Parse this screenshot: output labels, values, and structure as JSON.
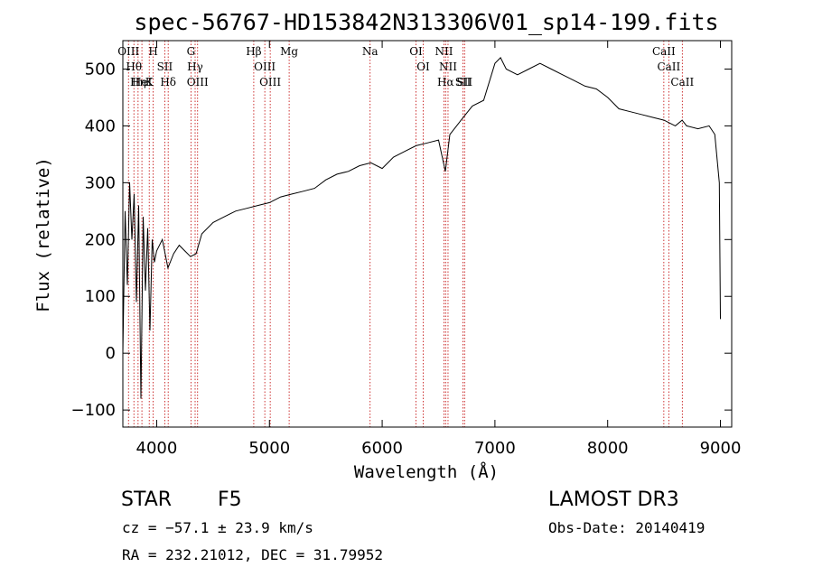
{
  "chart_data": {
    "type": "line",
    "title": "spec-56767-HD153842N313306V01_sp14-199.fits",
    "xlabel": "Wavelength (Å)",
    "ylabel": "Flux (relative)",
    "xlim": [
      3700,
      9100
    ],
    "ylim": [
      -130,
      550
    ],
    "xticks": [
      4000,
      5000,
      6000,
      7000,
      8000,
      9000
    ],
    "yticks": [
      -100,
      0,
      100,
      200,
      300,
      400,
      500
    ],
    "series": [
      {
        "name": "flux",
        "x": [
          3700,
          3720,
          3740,
          3760,
          3780,
          3800,
          3820,
          3840,
          3860,
          3880,
          3900,
          3920,
          3940,
          3960,
          3980,
          4000,
          4050,
          4100,
          4150,
          4200,
          4250,
          4300,
          4350,
          4400,
          4500,
          4600,
          4700,
          4800,
          4900,
          5000,
          5100,
          5200,
          5300,
          5400,
          5500,
          5600,
          5700,
          5800,
          5900,
          6000,
          6100,
          6200,
          6300,
          6400,
          6500,
          6560,
          6600,
          6700,
          6800,
          6900,
          7000,
          7050,
          7100,
          7200,
          7300,
          7400,
          7500,
          7600,
          7700,
          7800,
          7900,
          8000,
          8100,
          8200,
          8300,
          8400,
          8500,
          8550,
          8600,
          8660,
          8700,
          8800,
          8900,
          8950,
          8990,
          9000
        ],
        "y": [
          0,
          250,
          120,
          300,
          200,
          280,
          90,
          260,
          -80,
          240,
          110,
          220,
          40,
          200,
          160,
          180,
          200,
          150,
          175,
          190,
          180,
          170,
          175,
          210,
          230,
          240,
          250,
          255,
          260,
          265,
          275,
          280,
          285,
          290,
          305,
          315,
          320,
          330,
          335,
          325,
          345,
          355,
          365,
          370,
          375,
          320,
          385,
          410,
          435,
          445,
          510,
          520,
          500,
          490,
          500,
          510,
          500,
          490,
          480,
          470,
          465,
          450,
          430,
          425,
          420,
          415,
          410,
          405,
          400,
          410,
          400,
          395,
          400,
          385,
          300,
          60
        ]
      }
    ],
    "reference_lines": [
      {
        "x": 3750,
        "label": "OIII"
      },
      {
        "x": 3798,
        "label": "Hθ"
      },
      {
        "x": 3835,
        "label": "Hη"
      },
      {
        "x": 3869,
        "label": "HeI"
      },
      {
        "x": 3934,
        "label": "K"
      },
      {
        "x": 3969,
        "label": "H"
      },
      {
        "x": 4072,
        "label": "SII"
      },
      {
        "x": 4102,
        "label": "Hδ"
      },
      {
        "x": 4304,
        "label": "G"
      },
      {
        "x": 4341,
        "label": "Hγ"
      },
      {
        "x": 4363,
        "label": "OIII"
      },
      {
        "x": 4861,
        "label": "Hβ"
      },
      {
        "x": 4959,
        "label": "OIII"
      },
      {
        "x": 5007,
        "label": "OIII"
      },
      {
        "x": 5175,
        "label": "Mg"
      },
      {
        "x": 5893,
        "label": "Na"
      },
      {
        "x": 6300,
        "label": "OI"
      },
      {
        "x": 6364,
        "label": "OI"
      },
      {
        "x": 6548,
        "label": "NII"
      },
      {
        "x": 6563,
        "label": "Hα"
      },
      {
        "x": 6584,
        "label": "NII"
      },
      {
        "x": 6717,
        "label": "SII"
      },
      {
        "x": 6731,
        "label": "SII"
      },
      {
        "x": 8498,
        "label": "CaII"
      },
      {
        "x": 8542,
        "label": "CaII"
      },
      {
        "x": 8662,
        "label": "CaII"
      }
    ],
    "colors": {
      "spectrum": "#000000",
      "reference_lines": "#c00000",
      "frame": "#000000"
    }
  },
  "info": {
    "object_class": "STAR",
    "subclass": "F5",
    "survey": "LAMOST DR3",
    "redshift_line": "cz = −57.1 ± 23.9 km/s",
    "obs_date_line": "Obs-Date: 20140419",
    "coords_line": "RA = 232.21012, DEC =  31.79952"
  }
}
